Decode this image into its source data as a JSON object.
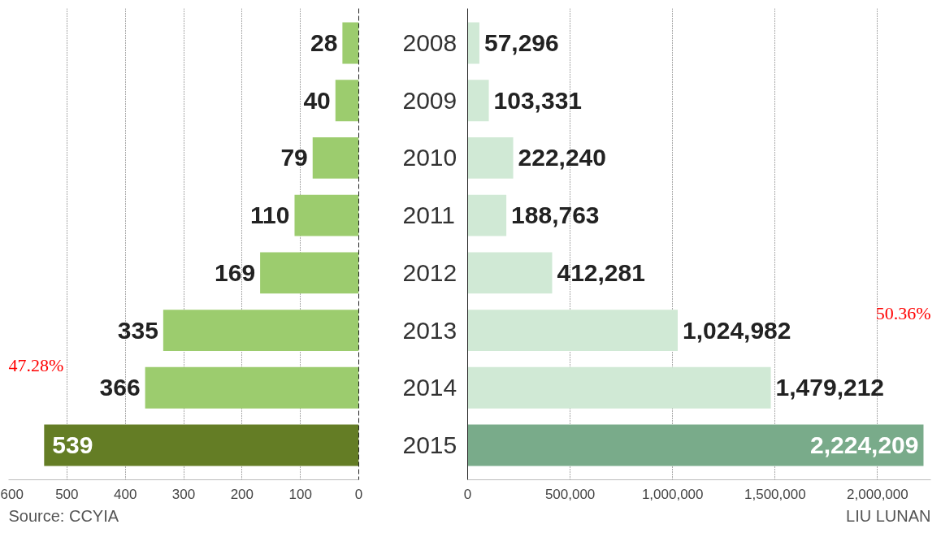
{
  "chart_data": [
    {
      "type": "bar",
      "orientation": "horizontal",
      "categories": [
        "2008",
        "2009",
        "2010",
        "2011",
        "2012",
        "2013",
        "2014",
        "2015"
      ],
      "values": [
        28,
        40,
        79,
        110,
        169,
        335,
        366,
        539
      ],
      "colors": [
        "#9ccc6e",
        "#9ccc6e",
        "#9ccc6e",
        "#9ccc6e",
        "#9ccc6e",
        "#9ccc6e",
        "#9ccc6e",
        "#647d25"
      ],
      "xlim": [
        600,
        0
      ],
      "xticks": [
        600,
        500,
        400,
        300,
        200,
        100,
        0
      ],
      "grid": "x",
      "data_labels": true,
      "annotations": [
        "47.28%",
        "Source: CCYIA"
      ]
    },
    {
      "type": "bar",
      "orientation": "horizontal",
      "categories": [
        "2008",
        "2009",
        "2010",
        "2011",
        "2012",
        "2013",
        "2014",
        "2015"
      ],
      "values": [
        57296,
        103331,
        222240,
        188763,
        412281,
        1024982,
        1479212,
        2224209
      ],
      "colors": [
        "#d0e9d5",
        "#d0e9d5",
        "#d0e9d5",
        "#d0e9d5",
        "#d0e9d5",
        "#d0e9d5",
        "#d0e9d5",
        "#79ab8a"
      ],
      "xlim": [
        0,
        2260000
      ],
      "xticks": [
        0,
        {
          "value": 500000,
          "label": "500,000"
        },
        {
          "value": 1000000,
          "label": "1,000,000"
        },
        {
          "value": 1500000,
          "label": "1,500,000"
        },
        {
          "value": 2000000,
          "label": "2,000,000"
        }
      ],
      "grid": "x",
      "tick_labels": "x",
      "value_labels": [
        "57,296",
        "103,331",
        "222,240",
        "188,763",
        "412,281",
        "1,024,982",
        "1,479,212",
        "2,224,209"
      ],
      "annotations": [
        "50.36%",
        "LIU LUNAN"
      ]
    }
  ]
}
